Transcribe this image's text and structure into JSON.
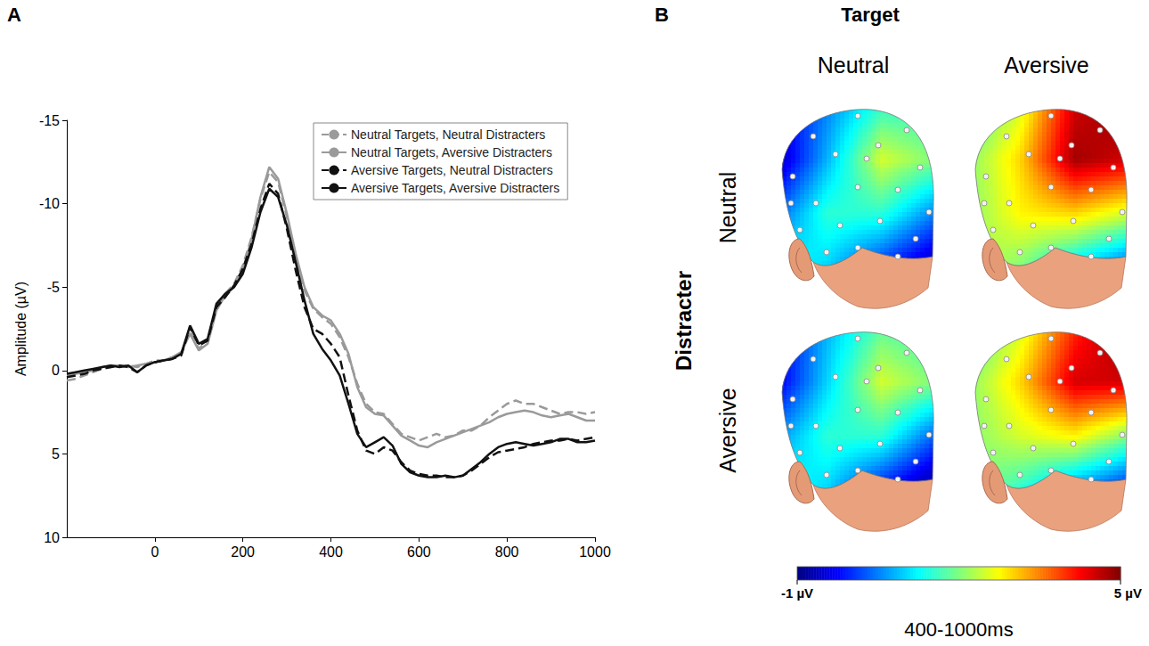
{
  "chart_data": [
    {
      "type": "line",
      "panel": "A",
      "y_label": "Amplitude (µV)",
      "xlim": [
        -200,
        1000
      ],
      "xticks": [
        0,
        200,
        400,
        600,
        800,
        1000
      ],
      "ylim": [
        10,
        -15
      ],
      "yticks": [
        -15,
        -10,
        -5,
        0,
        5,
        10
      ],
      "grid": false,
      "legend": "upper right",
      "x": [
        -200,
        -180,
        -160,
        -140,
        -120,
        -100,
        -80,
        -60,
        -40,
        -20,
        0,
        20,
        40,
        60,
        80,
        100,
        120,
        140,
        160,
        180,
        200,
        220,
        240,
        260,
        280,
        300,
        320,
        340,
        360,
        380,
        400,
        420,
        440,
        460,
        480,
        500,
        520,
        540,
        560,
        580,
        600,
        620,
        640,
        660,
        680,
        700,
        720,
        740,
        760,
        780,
        800,
        820,
        840,
        860,
        880,
        900,
        920,
        940,
        960,
        980,
        1000
      ],
      "series": [
        {
          "name": "Neutral Targets, Neutral Distracters",
          "color": "#9a9a9a",
          "line_style": "dashed",
          "values": [
            0.6,
            0.5,
            0.3,
            0.1,
            -0.1,
            -0.2,
            -0.3,
            -0.3,
            -0.2,
            -0.4,
            -0.6,
            -0.6,
            -0.8,
            -1.0,
            -2.4,
            -1.3,
            -1.8,
            -3.8,
            -4.6,
            -5.2,
            -6.3,
            -8.0,
            -10.3,
            -11.9,
            -11.3,
            -9.2,
            -6.8,
            -4.8,
            -3.7,
            -3.2,
            -2.8,
            -2.0,
            -0.8,
            0.8,
            2.0,
            2.5,
            2.6,
            3.2,
            3.8,
            4.0,
            4.2,
            4.0,
            3.8,
            4.0,
            3.9,
            3.6,
            3.6,
            3.3,
            2.8,
            2.4,
            2.0,
            1.8,
            2.0,
            2.0,
            2.2,
            2.4,
            2.6,
            2.5,
            2.5,
            2.6,
            2.5
          ]
        },
        {
          "name": "Neutral Targets, Aversive Distracters",
          "color": "#9a9a9a",
          "line_style": "solid",
          "values": [
            0.3,
            0.2,
            0.1,
            0,
            -0.2,
            -0.3,
            -0.3,
            -0.2,
            -0.3,
            -0.4,
            -0.5,
            -0.6,
            -0.8,
            -1.1,
            -2.2,
            -1.2,
            -1.6,
            -3.6,
            -4.5,
            -5.0,
            -6.0,
            -7.9,
            -10.4,
            -12.2,
            -11.5,
            -9.4,
            -7.0,
            -5.0,
            -3.8,
            -3.3,
            -3.0,
            -2.2,
            -1.0,
            1.0,
            2.2,
            2.6,
            2.7,
            3.3,
            3.9,
            4.2,
            4.5,
            4.6,
            4.3,
            4.1,
            3.9,
            3.7,
            3.5,
            3.3,
            3.1,
            2.8,
            2.6,
            2.5,
            2.4,
            2.5,
            2.7,
            2.8,
            2.7,
            2.6,
            2.8,
            3.0,
            3.0
          ]
        },
        {
          "name": "Aversive Targets, Neutral Distracters",
          "color": "#111111",
          "line_style": "dashed",
          "values": [
            0.4,
            0.3,
            0.2,
            0,
            -0.1,
            -0.2,
            -0.3,
            -0.2,
            0.1,
            -0.3,
            -0.5,
            -0.6,
            -0.7,
            -0.9,
            -2.6,
            -1.5,
            -1.8,
            -3.8,
            -4.4,
            -5.1,
            -6.1,
            -7.6,
            -9.7,
            -11.2,
            -10.6,
            -8.5,
            -6.0,
            -3.8,
            -2.5,
            -2.2,
            -1.6,
            -0.8,
            1.5,
            3.6,
            4.8,
            5.0,
            4.6,
            4.8,
            5.5,
            6.0,
            6.2,
            6.3,
            6.3,
            6.4,
            6.4,
            6.3,
            6.0,
            5.6,
            5.2,
            4.9,
            4.8,
            4.7,
            4.6,
            4.4,
            4.3,
            4.2,
            4.2,
            4.1,
            4.2,
            4.1,
            4.0
          ]
        },
        {
          "name": "Aversive Targets, Aversive Distracters",
          "color": "#111111",
          "line_style": "solid",
          "values": [
            0.2,
            0.1,
            0,
            -0.1,
            -0.2,
            -0.3,
            -0.2,
            -0.3,
            0.1,
            -0.3,
            -0.5,
            -0.6,
            -0.7,
            -1.0,
            -2.7,
            -1.6,
            -1.9,
            -4.0,
            -4.6,
            -5.0,
            -5.8,
            -7.4,
            -9.5,
            -10.9,
            -10.4,
            -8.7,
            -6.5,
            -4.2,
            -2.2,
            -1.3,
            -0.6,
            0.3,
            2.0,
            3.8,
            4.6,
            4.3,
            4.0,
            4.5,
            5.6,
            6.1,
            6.3,
            6.4,
            6.4,
            6.3,
            6.4,
            6.3,
            5.9,
            5.5,
            5.0,
            4.6,
            4.4,
            4.3,
            4.4,
            4.5,
            4.4,
            4.3,
            4.1,
            4.1,
            4.3,
            4.3,
            4.2
          ]
        }
      ]
    },
    {
      "type": "topomap",
      "panel": "B",
      "title": "Target",
      "columns": [
        "Neutral",
        "Aversive"
      ],
      "rows_title": "Distracter",
      "rows": [
        "Neutral",
        "Aversive"
      ],
      "maps": [
        [
          [
            [
              -0.5,
              0.5,
              1.5,
              1.5
            ],
            [
              -0.8,
              0.8,
              2.5,
              2.0
            ],
            [
              0.2,
              1.5,
              1.5,
              0.5
            ],
            [
              1.5,
              1.0,
              0.0,
              -0.8
            ]
          ],
          [
            [
              1.5,
              2.5,
              4.5,
              5.0
            ],
            [
              2.0,
              3.0,
              4.8,
              4.5
            ],
            [
              2.0,
              2.8,
              3.0,
              2.5
            ],
            [
              2.5,
              2.0,
              1.0,
              0.2
            ]
          ]
        ],
        [
          [
            [
              -0.5,
              0.8,
              1.8,
              1.5
            ],
            [
              -0.5,
              1.0,
              2.5,
              2.0
            ],
            [
              0.5,
              1.5,
              1.5,
              0.3
            ],
            [
              1.5,
              1.0,
              -0.2,
              -1.0
            ]
          ],
          [
            [
              1.5,
              2.5,
              4.0,
              5.0
            ],
            [
              2.0,
              3.0,
              4.5,
              4.5
            ],
            [
              2.0,
              2.5,
              2.8,
              2.0
            ],
            [
              2.2,
              1.5,
              0.5,
              -0.2
            ]
          ]
        ]
      ],
      "colorbar": {
        "range": [
          -1,
          5
        ],
        "ticks": [
          {
            "value": -1,
            "label": "-1 µV"
          },
          {
            "value": 5,
            "label": "5 µV"
          }
        ],
        "title": "400-1000ms"
      }
    }
  ]
}
